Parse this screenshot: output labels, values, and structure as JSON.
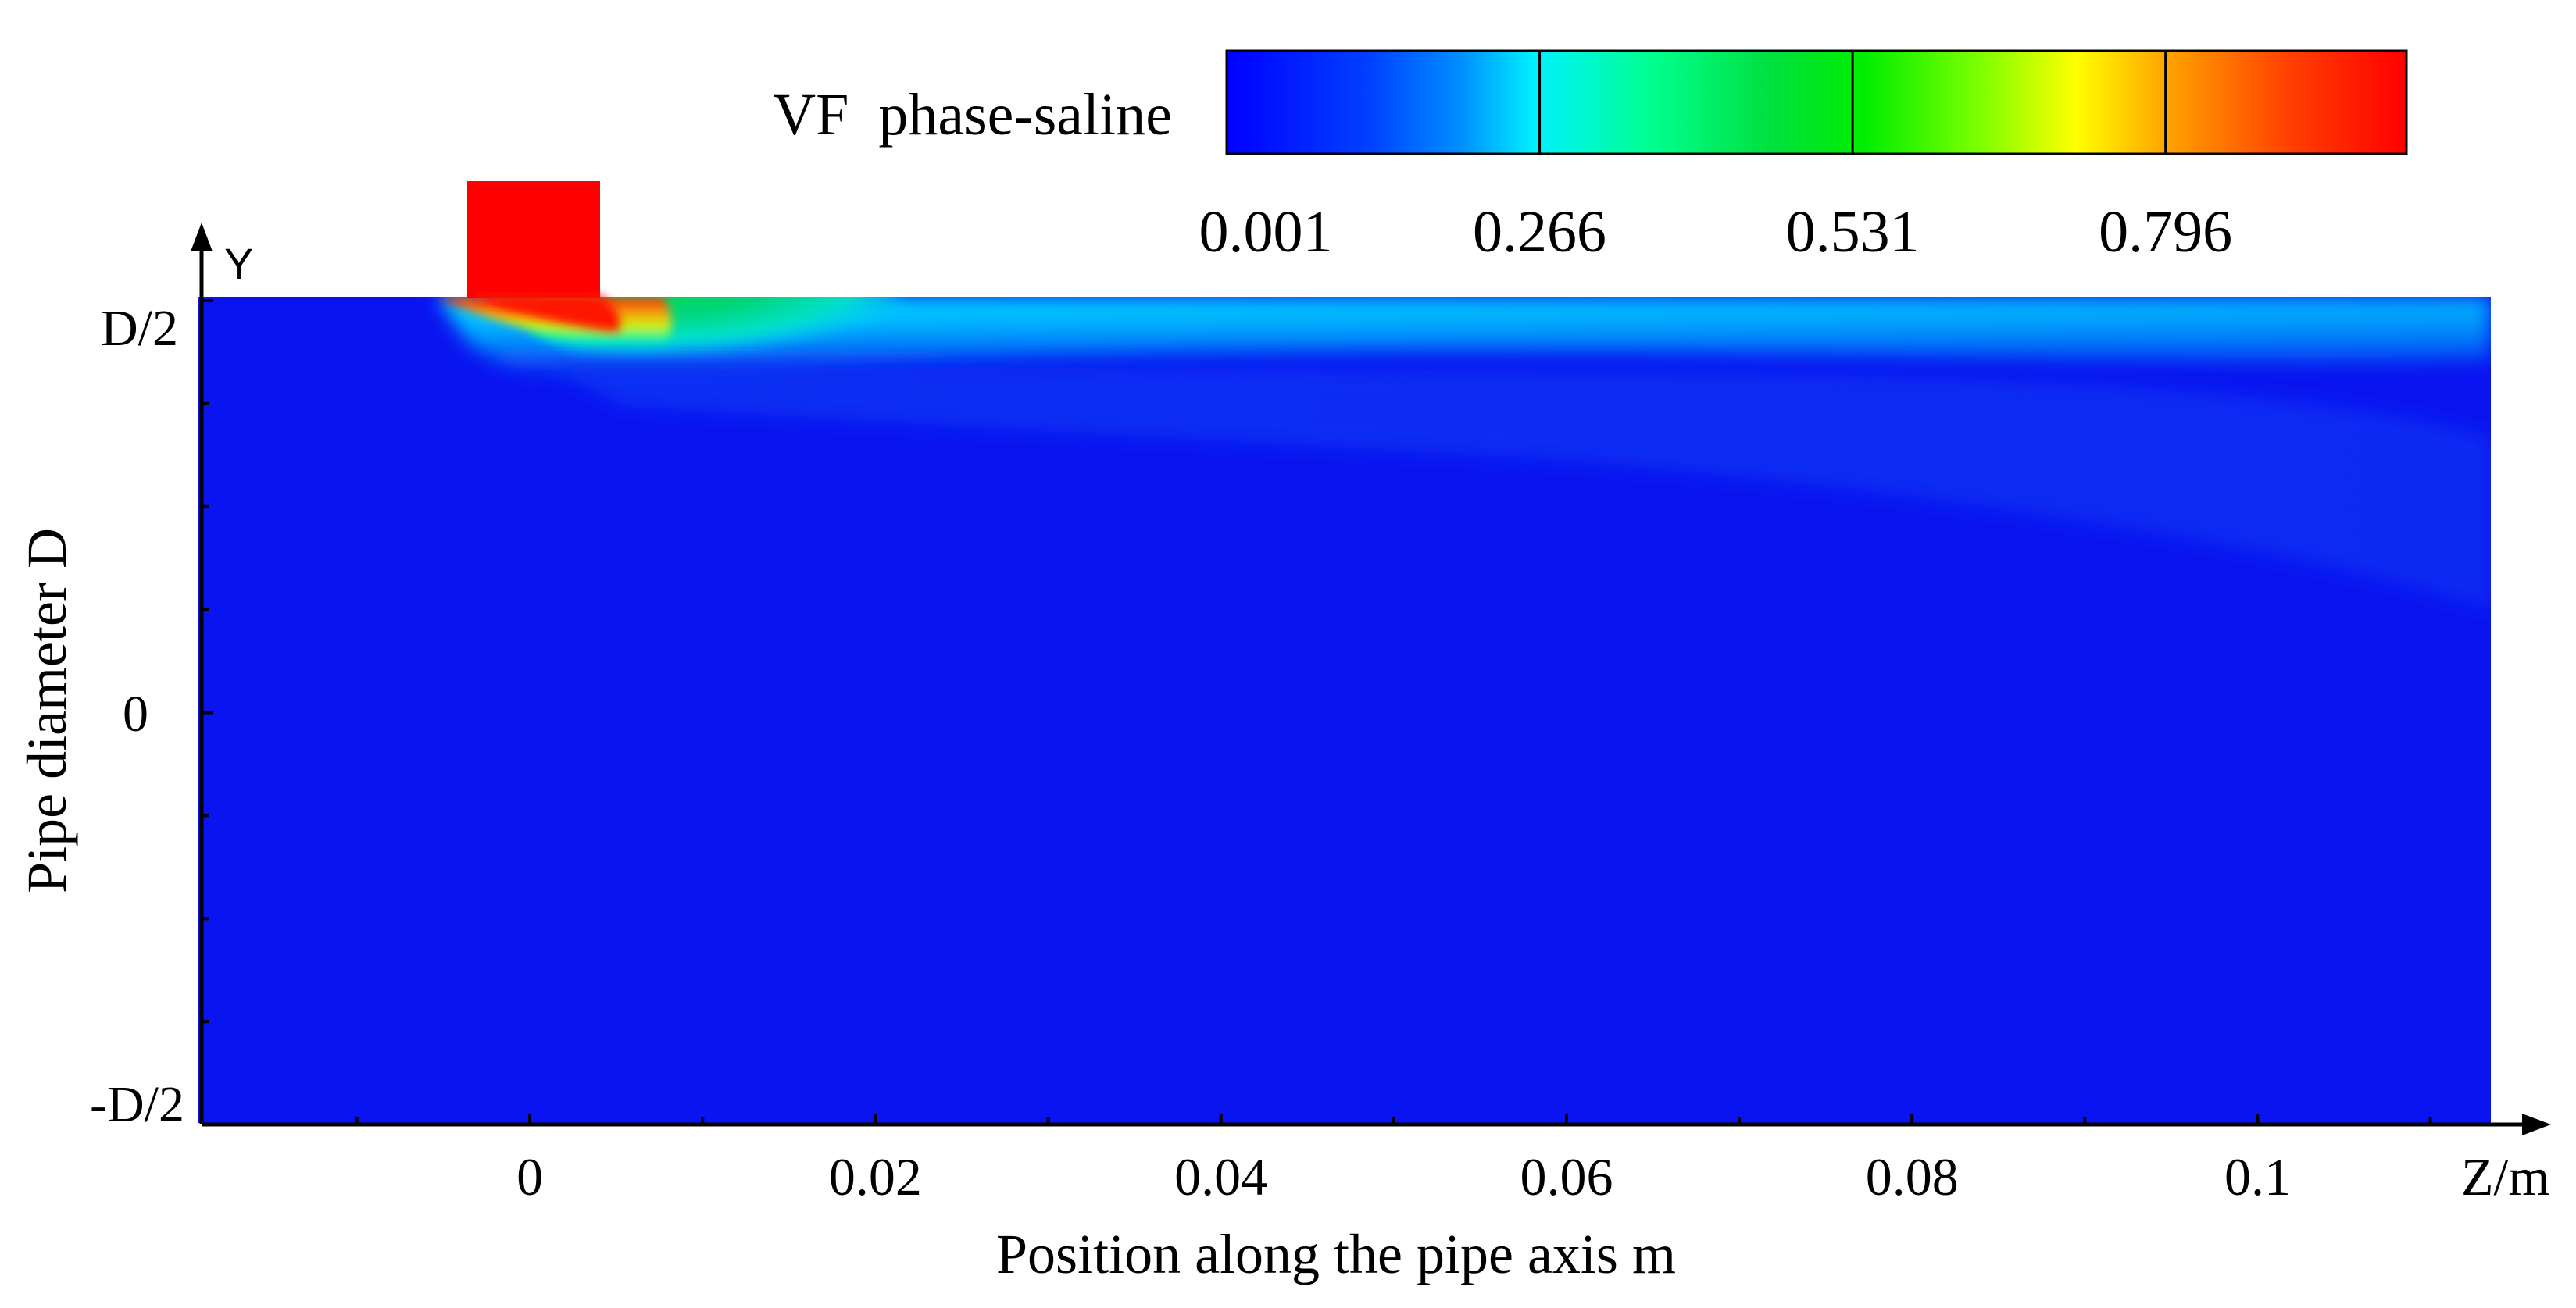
{
  "chart_data": {
    "type": "heatmap",
    "title": "VF  phase-saline",
    "xlabel": "Position along the pipe axis  m",
    "ylabel": "Pipe diameter D",
    "x_axis_name": "Z/m",
    "y_axis_name": "Y",
    "xlim": [
      -0.019,
      0.1135
    ],
    "ylim": [
      "-D/2",
      "D/2"
    ],
    "x_ticks": [
      0,
      0.02,
      0.04,
      0.06,
      0.08,
      0.1
    ],
    "x_tick_labels": [
      "0",
      "0.02",
      "0.04",
      "0.06",
      "0.08",
      "0.1"
    ],
    "y_tick_labels": [
      "D/2",
      "0",
      "-D/2"
    ],
    "colorbar": {
      "label": "VF  phase-saline",
      "min": 0.001,
      "max": 1.0,
      "tick_values": [
        0.001,
        0.266,
        0.531,
        0.796
      ],
      "tick_labels": [
        "0.001",
        "0.266",
        "0.531",
        "0.796"
      ],
      "colormap": "jet"
    },
    "inlet": {
      "description": "saline injection inlet at top wall",
      "z_range": [
        -0.0035,
        0.004
      ],
      "volume_fraction": 1.0
    },
    "plume": {
      "description": "saline layer attached to the upper wall, spreading downstream",
      "peak_fraction_near_inlet": 0.85,
      "green_region_z_range": [
        0.005,
        0.02
      ],
      "downstream_wall_fraction": 0.3,
      "background_fraction": 0.001
    }
  },
  "colors": {
    "background_fluid": "#0a14f0",
    "axis": "#000000",
    "colormap_stops": [
      "#0000ff",
      "#0040ff",
      "#0090ff",
      "#00f0ff",
      "#00ff90",
      "#00e040",
      "#00ee00",
      "#80ff00",
      "#ffff00",
      "#ffa000",
      "#ff4000",
      "#ff0000"
    ]
  }
}
